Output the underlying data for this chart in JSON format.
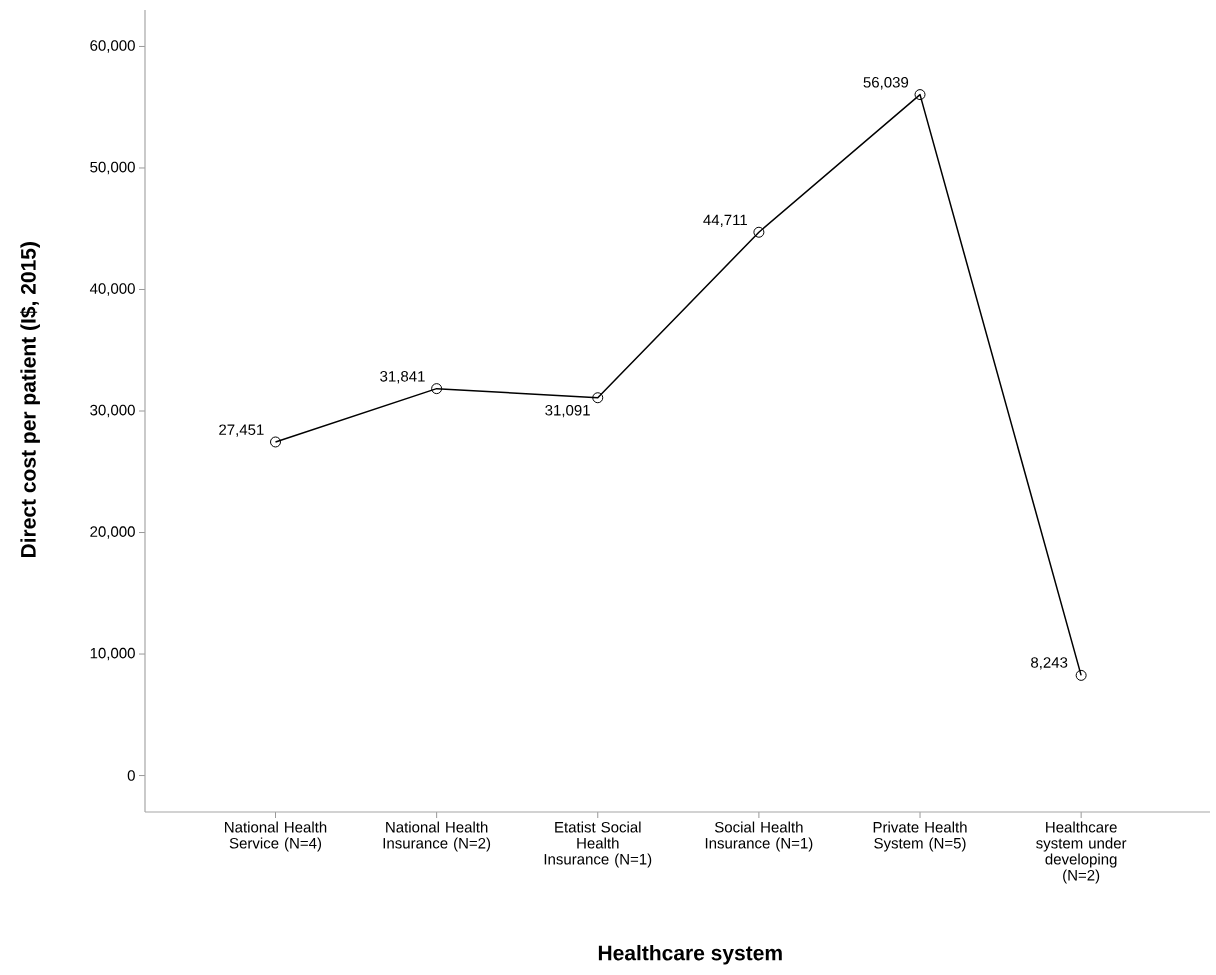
{
  "chart_data": {
    "type": "line",
    "xlabel": "Healthcare system",
    "ylabel": "Direct cost per patient (I$, 2015)",
    "categories": [
      "National Health Service (N=4)",
      "National Health Insurance (N=2)",
      "Etatist Social Health Insurance (N=1)",
      "Social Health Insurance (N=1)",
      "Private Health System (N=5)",
      "Healthcare system under developing (N=2)"
    ],
    "values": [
      27451,
      31841,
      31091,
      44711,
      56039,
      8243
    ],
    "value_labels": [
      "27,451",
      "31,841",
      "31,091",
      "44,711",
      "56,039",
      "8,243"
    ],
    "color": "#000000",
    "marker": "circle",
    "line_style": "solid",
    "grid": false,
    "ylim": [
      -3000,
      63000
    ],
    "yticks": [
      0,
      {
        "value": 10000,
        "label": "10,000"
      },
      {
        "value": 20000,
        "label": "20,000"
      },
      {
        "value": 30000,
        "label": "30,000"
      },
      {
        "value": 40000,
        "label": "40,000"
      },
      {
        "value": 50000,
        "label": "50,000"
      },
      {
        "value": 60000,
        "label": "60,000"
      }
    ]
  }
}
